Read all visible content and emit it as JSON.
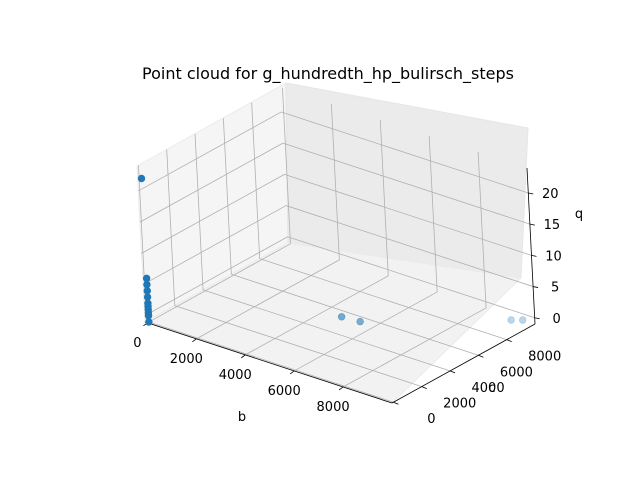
{
  "chart_data": {
    "type": "scatter3d",
    "title": "Point cloud for g_hundredth_hp_bulirsch_steps",
    "xlabel": "b",
    "ylabel": "c",
    "zlabel": "q",
    "xticks": [
      "0",
      "2000",
      "4000",
      "6000",
      "8000"
    ],
    "yticks": [
      "0",
      "2000",
      "4000",
      "6000",
      "8000"
    ],
    "zticks": [
      "0",
      "5",
      "10",
      "15",
      "20"
    ],
    "xlim": [
      -100,
      10000
    ],
    "ylim": [
      -100,
      10000
    ],
    "zlim": [
      -1,
      24
    ],
    "grid": true,
    "marker_color": "#1f77b4",
    "points": [
      {
        "b": 0,
        "c": 0,
        "q": 22
      },
      {
        "b": 0,
        "c": 0,
        "q": 6
      },
      {
        "b": 0,
        "c": 0,
        "q": 5
      },
      {
        "b": 0,
        "c": 0,
        "q": 4
      },
      {
        "b": 0,
        "c": 0,
        "q": 3
      },
      {
        "b": 0,
        "c": 0,
        "q": 2
      },
      {
        "b": 0,
        "c": 0,
        "q": 1.5
      },
      {
        "b": 0,
        "c": 0,
        "q": 1
      },
      {
        "b": 0,
        "c": 0,
        "q": 0.5
      },
      {
        "b": 0,
        "c": 0,
        "q": 0
      },
      {
        "b": 0,
        "c": 0,
        "q": -1
      },
      {
        "b": 5000,
        "c": 5000,
        "q": 0
      },
      {
        "b": 5700,
        "c": 5100,
        "q": 0
      },
      {
        "b": 9500,
        "c": 9200,
        "q": 0
      },
      {
        "b": 9800,
        "c": 9500,
        "q": 0
      }
    ]
  }
}
